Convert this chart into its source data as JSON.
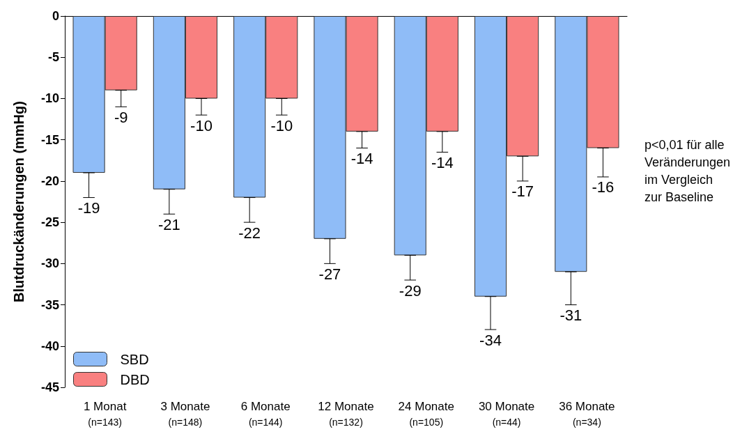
{
  "chart_data": {
    "type": "bar",
    "ylabel": "Blutdruckänderungen (mmHg)",
    "categories": [
      "1 Monat\n(n=143)",
      "3 Monate\n(n=148)",
      "6 Monate\n(n=144)",
      "12 Monate\n(n=132)",
      "24 Monate\n(n=105)",
      "30 Monate\n(n=44)",
      "36 Monate\n(n=34)"
    ],
    "series": [
      {
        "name": "SBD",
        "color": "#8fbcf7",
        "values": [
          -19,
          -21,
          -22,
          -27,
          -29,
          -34,
          -31
        ],
        "errors": [
          [
            -22,
            -19
          ],
          [
            -24,
            -21
          ],
          [
            -25,
            -22
          ],
          [
            -30,
            -27
          ],
          [
            -32,
            -29
          ],
          [
            -38,
            -34
          ],
          [
            -35,
            -31
          ]
        ]
      },
      {
        "name": "DBD",
        "color": "#f98080",
        "values": [
          -9,
          -10,
          -10,
          -14,
          -14,
          -17,
          -16
        ],
        "errors": [
          [
            -11,
            -9
          ],
          [
            -12,
            -10
          ],
          [
            -12,
            -10
          ],
          [
            -16,
            -14
          ],
          [
            -16.5,
            -14
          ],
          [
            -20,
            -17
          ],
          [
            -19.5,
            -16
          ]
        ]
      }
    ],
    "ylim": [
      -45,
      0
    ],
    "yticks": [
      0,
      -5,
      -10,
      -15,
      -20,
      -25,
      -30,
      -35,
      -40,
      -45
    ],
    "grid": false,
    "legend": "bottom left",
    "data_labels": true,
    "annotations": [
      "p<0,01 für alle\nVeränderungen\nim Vergleich\nzur Baseline"
    ]
  }
}
